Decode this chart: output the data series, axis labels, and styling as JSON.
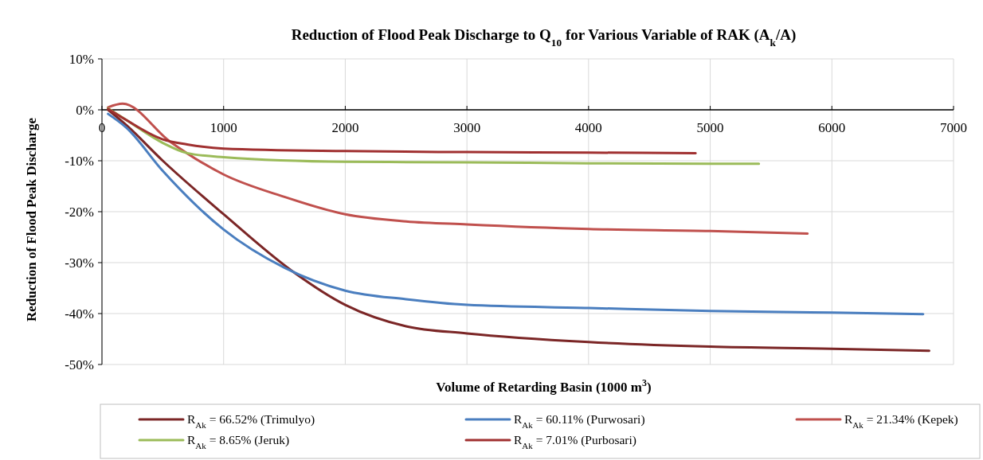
{
  "chart_data": {
    "type": "line",
    "title": "Reduction of Flood Peak Discharge to Q$_{10}$ for Various Variable of RAK (A$_{k}$/A)",
    "xlabel": "Volume of Retarding  Basin (1000 m$^{3}$)",
    "ylabel": "Reduction of Flood Peak Discharge",
    "xlim": [
      0,
      7000
    ],
    "xticks": [
      0,
      1000,
      2000,
      3000,
      4000,
      5000,
      6000,
      7000
    ],
    "ylim": [
      -50,
      10
    ],
    "yticks": [
      {
        "value": 10,
        "label": "10%"
      },
      {
        "value": 0,
        "label": "0%"
      },
      {
        "value": -10,
        "label": "-10%"
      },
      {
        "value": -20,
        "label": "-20%"
      },
      {
        "value": -30,
        "label": "-30%"
      },
      {
        "value": -40,
        "label": "-40%"
      },
      {
        "value": -50,
        "label": "-50%"
      }
    ],
    "grid": true,
    "legend": "bottom",
    "marker": "none",
    "line_style": "solid",
    "series": [
      {
        "name": "R$_{Ak}$ = 66.52% (Trimulyo)",
        "color": "#7b2626",
        "x": [
          50,
          200,
          500,
          1000,
          1560,
          2000,
          2500,
          3000,
          4000,
          5000,
          6000,
          6800
        ],
        "values": [
          0,
          -3,
          -10,
          -20.5,
          -31.6,
          -38.3,
          -42.5,
          -43.9,
          -45.6,
          -46.5,
          -46.9,
          -47.3
        ]
      },
      {
        "name": "R$_{Ak}$ = 60.11% (Purwosari)",
        "color": "#4a7ebf",
        "x": [
          50,
          200,
          500,
          1000,
          1500,
          2000,
          2500,
          3000,
          4000,
          5000,
          6000,
          6750
        ],
        "values": [
          -0.8,
          -3.5,
          -12,
          -23.5,
          -31,
          -35.5,
          -37.2,
          -38.3,
          -38.9,
          -39.5,
          -39.8,
          -40.1
        ]
      },
      {
        "name": "R$_{Ak}$ = 21.34% (Kepek)",
        "color": "#c0504d",
        "x": [
          50,
          170,
          557,
          1000,
          1500,
          2000,
          2500,
          3000,
          4000,
          5000,
          5800
        ],
        "values": [
          0.5,
          1.2,
          -6.2,
          -12.7,
          -17.1,
          -20.5,
          -21.9,
          -22.5,
          -23.4,
          -23.8,
          -24.3
        ]
      },
      {
        "name": "R$_{Ak}$ = 8.65% (Jeruk)",
        "color": "#9bbb59",
        "x": [
          50,
          200,
          500,
          700,
          1000,
          2000,
          3000,
          4000,
          5000,
          5400
        ],
        "values": [
          0.3,
          -2,
          -6.5,
          -8.5,
          -9.3,
          -10.2,
          -10.3,
          -10.5,
          -10.6,
          -10.6
        ]
      },
      {
        "name": "R$_{Ak}$ = 7.01% (Purbosari)",
        "color": "#a03030",
        "x": [
          50,
          200,
          500,
          700,
          1000,
          2000,
          3000,
          4000,
          4880
        ],
        "values": [
          0.2,
          -2,
          -5.8,
          -6.8,
          -7.6,
          -8.1,
          -8.3,
          -8.4,
          -8.5
        ]
      }
    ]
  }
}
